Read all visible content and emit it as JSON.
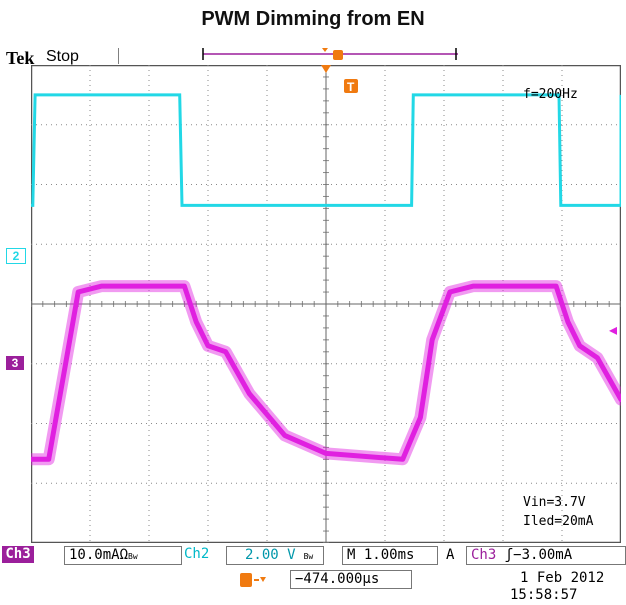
{
  "title": "PWM Dimming from EN",
  "brand": "Tek",
  "run_state": "Stop",
  "annotations": {
    "frequency": "f=200Hz",
    "vin": "Vin=3.7V",
    "iled": "Iled=20mA"
  },
  "channel_markers": {
    "ch2": "2",
    "ch3": "3",
    "trigger": "T"
  },
  "status_bar": {
    "ch3_label": "Ch3",
    "ch3_scale": "10.0mAΩ",
    "ch3_bw": "Bw",
    "ch2_label": "Ch2",
    "ch2_scale": "2.00 V",
    "ch2_bw": "Bw",
    "timebase": "M 1.00ms",
    "trigger_mode": "A",
    "trigger_source": "Ch3",
    "trigger_level": "ʃ−3.00mA",
    "trigger_offset": "−474.000µs",
    "date": "1 Feb  2012",
    "time": "15:58:57"
  },
  "colors": {
    "ch2": "#22d8e6",
    "ch3": "#e020e0",
    "trigger": "#f07a10",
    "grid": "#8a8a8a",
    "ch3_box": "#9b1f9b"
  },
  "chart_data": {
    "type": "line",
    "x_divisions": 10,
    "y_divisions": 8,
    "x_unit": "ms",
    "x_per_div": 1.0,
    "series": [
      {
        "name": "Ch2",
        "unit": "V",
        "per_div": 2.0,
        "points": [
          [
            0,
            0
          ],
          [
            0.03,
            0
          ],
          [
            0.07,
            3.7
          ],
          [
            2.52,
            3.7
          ],
          [
            2.56,
            0
          ],
          [
            6.45,
            0
          ],
          [
            6.48,
            3.7
          ],
          [
            8.95,
            3.7
          ],
          [
            8.98,
            0
          ],
          [
            10.0,
            0
          ],
          [
            10.0,
            3.7
          ]
        ]
      },
      {
        "name": "Ch3",
        "unit": "mA",
        "per_div": 10.0,
        "points": [
          [
            0,
            -21
          ],
          [
            0.3,
            -21
          ],
          [
            0.55,
            -7
          ],
          [
            0.8,
            7
          ],
          [
            1.2,
            8
          ],
          [
            2.6,
            8
          ],
          [
            2.8,
            2
          ],
          [
            3.0,
            -2
          ],
          [
            3.3,
            -3
          ],
          [
            3.7,
            -10
          ],
          [
            4.3,
            -17
          ],
          [
            5.0,
            -20
          ],
          [
            6.3,
            -21
          ],
          [
            6.6,
            -14
          ],
          [
            6.8,
            -1
          ],
          [
            7.1,
            7
          ],
          [
            7.5,
            8
          ],
          [
            8.9,
            8
          ],
          [
            9.1,
            2
          ],
          [
            9.3,
            -2
          ],
          [
            9.6,
            -4
          ],
          [
            10.0,
            -11
          ]
        ]
      }
    ]
  }
}
